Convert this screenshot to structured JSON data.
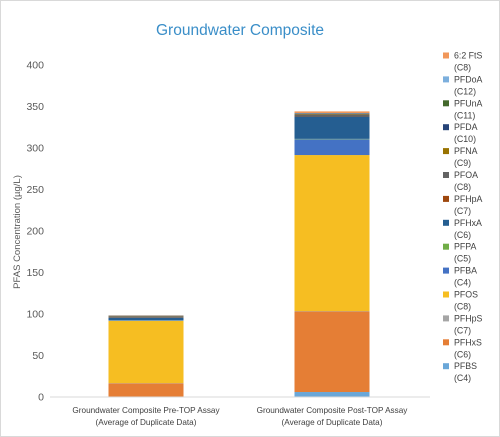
{
  "chart_data": {
    "type": "bar",
    "stacked": true,
    "title": "Groundwater Composite",
    "ylabel": "PFAS Concentration (µg/L)",
    "xlabel": "",
    "ylim": [
      0,
      400
    ],
    "yticks": [
      0,
      50,
      100,
      150,
      200,
      250,
      300,
      350,
      400
    ],
    "grid": false,
    "legend_position": "right",
    "categories": [
      [
        "Groundwater Composite Pre-TOP Assay",
        "(Average of Duplicate Data)"
      ],
      [
        "Groundwater Composite Post-TOP Assay",
        "(Average of Duplicate Data)"
      ]
    ],
    "series": [
      {
        "name": [
          "PFBS",
          "(C4)"
        ],
        "color": "#6aa7d8",
        "values": [
          0.5,
          6
        ]
      },
      {
        "name": [
          "PFHxS",
          "(C6)"
        ],
        "color": "#e57e35",
        "values": [
          16,
          97
        ]
      },
      {
        "name": [
          "PFHpS",
          "(C7)"
        ],
        "color": "#a5a5a5",
        "values": [
          0.3,
          0.5
        ]
      },
      {
        "name": [
          "PFOS",
          "(C8)"
        ],
        "color": "#f6be22",
        "values": [
          75,
          188
        ]
      },
      {
        "name": [
          "PFBA",
          "(C4)"
        ],
        "color": "#4472c4",
        "values": [
          0.5,
          19
        ]
      },
      {
        "name": [
          "PFPA",
          "(C5)"
        ],
        "color": "#70ad47",
        "values": [
          0.2,
          0.5
        ]
      },
      {
        "name": [
          "PFHxA",
          "(C6)"
        ],
        "color": "#255e91",
        "values": [
          3,
          27
        ]
      },
      {
        "name": [
          "PFHpA",
          "(C7)"
        ],
        "color": "#9e480e",
        "values": [
          0.2,
          0.5
        ]
      },
      {
        "name": [
          "PFOA",
          "(C8)"
        ],
        "color": "#636363",
        "values": [
          1.5,
          2
        ]
      },
      {
        "name": [
          "PFNA",
          "(C9)"
        ],
        "color": "#997300",
        "values": [
          0.3,
          0.5
        ]
      },
      {
        "name": [
          "PFDA",
          "(C10)"
        ],
        "color": "#264478",
        "values": [
          0.3,
          0.5
        ]
      },
      {
        "name": [
          "PFUnA",
          "(C11)"
        ],
        "color": "#43682b",
        "values": [
          0.2,
          0.3
        ]
      },
      {
        "name": [
          "PFDoA",
          "(C12)"
        ],
        "color": "#7cafdd",
        "values": [
          0.2,
          0.3
        ]
      },
      {
        "name": [
          "6:2 FtS",
          "(C8)"
        ],
        "color": "#f1975a",
        "values": [
          0.3,
          2
        ]
      }
    ]
  }
}
